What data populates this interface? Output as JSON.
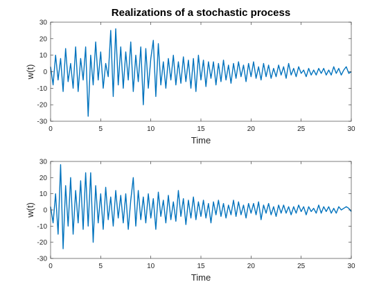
{
  "chart_data": [
    {
      "type": "line",
      "title": "Realizations of a stochastic process",
      "xlabel": "Time",
      "ylabel": "w(t)",
      "color": "#0072bd",
      "xlim": [
        0,
        30
      ],
      "ylim": [
        -30,
        30
      ],
      "xticks": [
        0,
        5,
        10,
        15,
        20,
        25,
        30
      ],
      "yticks": [
        -30,
        -20,
        -10,
        0,
        10,
        20,
        30
      ],
      "x": [
        0,
        0.25,
        0.5,
        0.75,
        1,
        1.25,
        1.5,
        1.75,
        2,
        2.25,
        2.5,
        2.75,
        3,
        3.25,
        3.5,
        3.75,
        4,
        4.25,
        4.5,
        4.75,
        5,
        5.25,
        5.5,
        5.75,
        6,
        6.25,
        6.5,
        6.75,
        7,
        7.25,
        7.5,
        7.75,
        8,
        8.25,
        8.5,
        8.75,
        9,
        9.25,
        9.5,
        9.75,
        10,
        10.25,
        10.5,
        10.75,
        11,
        11.25,
        11.5,
        11.75,
        12,
        12.25,
        12.5,
        12.75,
        13,
        13.25,
        13.5,
        13.75,
        14,
        14.25,
        14.5,
        14.75,
        15,
        15.25,
        15.5,
        15.75,
        16,
        16.25,
        16.5,
        16.75,
        17,
        17.25,
        17.5,
        17.75,
        18,
        18.25,
        18.5,
        18.75,
        19,
        19.25,
        19.5,
        19.75,
        20,
        20.25,
        20.5,
        20.75,
        21,
        21.25,
        21.5,
        21.75,
        22,
        22.25,
        22.5,
        22.75,
        23,
        23.25,
        23.5,
        23.75,
        24,
        24.25,
        24.5,
        24.75,
        25,
        25.25,
        25.5,
        25.75,
        26,
        26.25,
        26.5,
        26.75,
        27,
        27.25,
        27.5,
        27.75,
        28,
        28.25,
        28.5,
        28.75,
        29,
        29.25,
        29.5,
        29.75,
        30
      ],
      "values": [
        3,
        -8,
        10,
        -5,
        8,
        -12,
        14,
        -6,
        5,
        -10,
        15,
        -12,
        8,
        -5,
        15,
        -27,
        10,
        -8,
        18,
        -5,
        12,
        -10,
        5,
        -3,
        25,
        -15,
        26,
        -8,
        15,
        -10,
        12,
        -5,
        18,
        -12,
        10,
        -6,
        15,
        -20,
        14,
        -10,
        8,
        19,
        -15,
        17,
        -8,
        6,
        -10,
        8,
        -5,
        10,
        -8,
        6,
        -7,
        9,
        -6,
        7,
        -10,
        8,
        -12,
        10,
        -5,
        7,
        -9,
        6,
        -4,
        6,
        -8,
        5,
        -6,
        7,
        -5,
        4,
        -7,
        5,
        -4,
        6,
        -3,
        4,
        -6,
        5,
        -3,
        6,
        -4,
        3,
        -5,
        5,
        -3,
        4,
        -4,
        2,
        -3,
        4,
        -2,
        3,
        -4,
        5,
        -2,
        2,
        -3,
        3,
        -1,
        1,
        -3,
        2,
        -2,
        1,
        -2,
        2,
        -1,
        2,
        -2,
        1,
        -2,
        3,
        -1,
        2,
        -2,
        1,
        3,
        -1,
        0
      ]
    },
    {
      "type": "line",
      "xlabel": "Time",
      "ylabel": "w(t)",
      "color": "#0072bd",
      "xlim": [
        0,
        30
      ],
      "ylim": [
        -30,
        30
      ],
      "xticks": [
        0,
        5,
        10,
        15,
        20,
        25,
        30
      ],
      "yticks": [
        -30,
        -20,
        -10,
        0,
        10,
        20,
        30
      ],
      "x": [
        0,
        0.25,
        0.5,
        0.75,
        1,
        1.25,
        1.5,
        1.75,
        2,
        2.25,
        2.5,
        2.75,
        3,
        3.25,
        3.5,
        3.75,
        4,
        4.25,
        4.5,
        4.75,
        5,
        5.25,
        5.5,
        5.75,
        6,
        6.25,
        6.5,
        6.75,
        7,
        7.25,
        7.5,
        7.75,
        8,
        8.25,
        8.5,
        8.75,
        9,
        9.25,
        9.5,
        9.75,
        10,
        10.25,
        10.5,
        10.75,
        11,
        11.25,
        11.5,
        11.75,
        12,
        12.25,
        12.5,
        12.75,
        13,
        13.25,
        13.5,
        13.75,
        14,
        14.25,
        14.5,
        14.75,
        15,
        15.25,
        15.5,
        15.75,
        16,
        16.25,
        16.5,
        16.75,
        17,
        17.25,
        17.5,
        17.75,
        18,
        18.25,
        18.5,
        18.75,
        19,
        19.25,
        19.5,
        19.75,
        20,
        20.25,
        20.5,
        20.75,
        21,
        21.25,
        21.5,
        21.75,
        22,
        22.25,
        22.5,
        22.75,
        23,
        23.25,
        23.5,
        23.75,
        24,
        24.25,
        24.5,
        24.75,
        25,
        25.25,
        25.5,
        25.75,
        26,
        26.25,
        26.5,
        26.75,
        27,
        27.25,
        27.5,
        27.75,
        28,
        28.25,
        28.5,
        28.75,
        29,
        29.25,
        29.5,
        29.75,
        30
      ],
      "values": [
        2,
        -8,
        10,
        -15,
        28,
        -24,
        15,
        -10,
        20,
        -15,
        12,
        -8,
        18,
        -12,
        23,
        -10,
        23,
        -20,
        15,
        -8,
        10,
        -12,
        14,
        -6,
        8,
        -10,
        12,
        -5,
        9,
        -8,
        10,
        -12,
        6,
        20,
        -10,
        12,
        -6,
        8,
        -8,
        10,
        -5,
        7,
        -12,
        11,
        -4,
        6,
        -8,
        9,
        -6,
        5,
        -7,
        12,
        -4,
        7,
        -9,
        6,
        -5,
        8,
        -6,
        5,
        -4,
        6,
        -5,
        4,
        -8,
        5,
        -3,
        6,
        -4,
        4,
        -5,
        3,
        -3,
        6,
        -4,
        5,
        -3,
        3,
        -5,
        4,
        -2,
        4,
        -3,
        5,
        -6,
        3,
        -2,
        4,
        -3,
        2,
        -4,
        3,
        -2,
        3,
        -2,
        2,
        -3,
        2,
        -2,
        3,
        -1,
        2,
        -3,
        2,
        -1,
        1,
        -2,
        3,
        -2,
        2,
        -1,
        2,
        -2,
        1,
        -2,
        2,
        0,
        1,
        2,
        1,
        -1
      ]
    }
  ]
}
